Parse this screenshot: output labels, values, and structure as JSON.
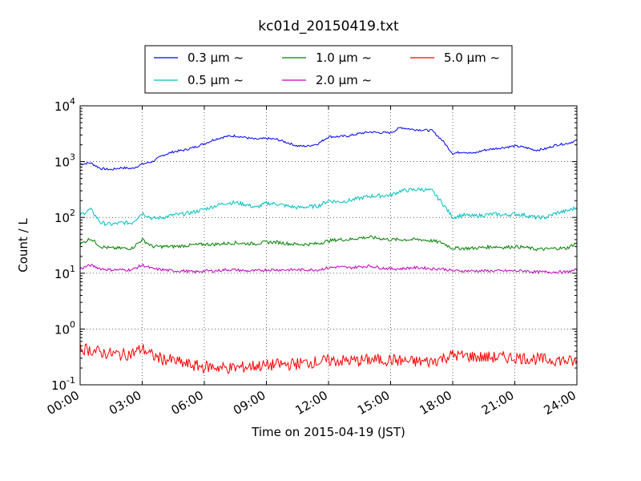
{
  "chart_data": {
    "type": "line",
    "title": "kc01d_20150419.txt",
    "xlabel": "Time on 2015-04-19 (JST)",
    "ylabel": "Count / L",
    "yscale": "log",
    "xlim": [
      "00:00",
      "24:00"
    ],
    "ylim": [
      0.1,
      10000
    ],
    "grid": true,
    "legend_position": "top",
    "x_ticks": [
      "00:00",
      "03:00",
      "06:00",
      "09:00",
      "12:00",
      "15:00",
      "18:00",
      "21:00",
      "24:00"
    ],
    "y_ticks": [
      {
        "base": "10",
        "exp": "-1"
      },
      {
        "base": "10",
        "exp": "0"
      },
      {
        "base": "10",
        "exp": "1"
      },
      {
        "base": "10",
        "exp": "2"
      },
      {
        "base": "10",
        "exp": "3"
      },
      {
        "base": "10",
        "exp": "4"
      }
    ],
    "x_hours": [
      0,
      0.5,
      1,
      1.5,
      2,
      2.5,
      3,
      3.5,
      4,
      4.5,
      5,
      5.5,
      6,
      6.5,
      7,
      7.5,
      8,
      8.5,
      9,
      9.5,
      10,
      10.5,
      11,
      11.5,
      12,
      12.5,
      13,
      13.5,
      14,
      14.5,
      15,
      15.5,
      16,
      16.5,
      17,
      17.5,
      18,
      18.5,
      19,
      19.5,
      20,
      20.5,
      21,
      21.5,
      22,
      22.5,
      23,
      23.5,
      24
    ],
    "series": [
      {
        "name": "0.3 μm ~",
        "color": "#0000ff",
        "values": [
          900,
          950,
          750,
          720,
          780,
          750,
          900,
          1000,
          1300,
          1500,
          1600,
          1800,
          2100,
          2500,
          2800,
          2900,
          2700,
          2500,
          2600,
          2500,
          2200,
          1900,
          1900,
          2100,
          2800,
          2800,
          2900,
          3200,
          3400,
          3300,
          3300,
          4100,
          3800,
          3700,
          3600,
          2400,
          1400,
          1500,
          1400,
          1600,
          1700,
          1800,
          1900,
          1800,
          1600,
          1700,
          2000,
          2100,
          2400
        ]
      },
      {
        "name": "0.5 μm ~",
        "color": "#00bfbf",
        "values": [
          110,
          140,
          80,
          75,
          80,
          80,
          120,
          95,
          100,
          110,
          115,
          125,
          140,
          160,
          180,
          185,
          170,
          150,
          180,
          175,
          160,
          150,
          155,
          160,
          200,
          190,
          200,
          220,
          240,
          245,
          250,
          300,
          310,
          320,
          300,
          180,
          100,
          110,
          105,
          110,
          115,
          110,
          115,
          110,
          100,
          100,
          120,
          130,
          150
        ]
      },
      {
        "name": "1.0 μm ~",
        "color": "#008000",
        "values": [
          33,
          42,
          30,
          28,
          28,
          28,
          40,
          30,
          30,
          30,
          31,
          32,
          33,
          33,
          34,
          35,
          34,
          34,
          36,
          36,
          34,
          33,
          33,
          34,
          38,
          40,
          40,
          43,
          44,
          42,
          40,
          40,
          40,
          40,
          38,
          35,
          28,
          28,
          28,
          29,
          30,
          29,
          30,
          29,
          27,
          27,
          28,
          28,
          35
        ]
      },
      {
        "name": "2.0 μm ~",
        "color": "#bf00bf",
        "values": [
          12,
          14,
          12,
          11.5,
          11.5,
          11.5,
          14,
          12,
          11.5,
          11,
          11,
          10.5,
          11,
          11,
          11.5,
          11.5,
          11,
          11,
          11.5,
          11.5,
          11.5,
          11.5,
          11.5,
          11.5,
          12.5,
          13,
          12.5,
          13,
          13.5,
          12.5,
          12,
          12,
          12.5,
          12.5,
          12,
          12,
          11,
          11,
          11,
          11,
          11,
          11,
          11,
          11,
          10.5,
          10.5,
          10.5,
          10.5,
          11.5
        ]
      },
      {
        "name": "5.0 μm ~",
        "color": "#ff0000",
        "values": [
          0.45,
          0.42,
          0.38,
          0.36,
          0.35,
          0.36,
          0.45,
          0.33,
          0.29,
          0.27,
          0.24,
          0.22,
          0.21,
          0.21,
          0.2,
          0.2,
          0.21,
          0.22,
          0.22,
          0.23,
          0.23,
          0.24,
          0.25,
          0.26,
          0.27,
          0.27,
          0.27,
          0.27,
          0.28,
          0.28,
          0.28,
          0.27,
          0.26,
          0.26,
          0.26,
          0.3,
          0.34,
          0.33,
          0.32,
          0.31,
          0.31,
          0.31,
          0.31,
          0.3,
          0.29,
          0.28,
          0.28,
          0.27,
          0.25
        ]
      }
    ]
  }
}
